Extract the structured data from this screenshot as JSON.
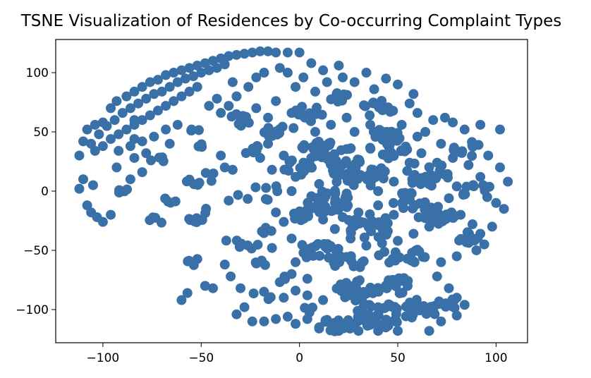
{
  "chart_data": {
    "type": "scatter",
    "title": "TSNE Visualization of Residences by Co-occurring Complaint Types",
    "xlabel": "",
    "ylabel": "",
    "xlim": [
      -124,
      116
    ],
    "ylim": [
      -128,
      128
    ],
    "xticks": [
      {
        "value": -100,
        "label": "−100"
      },
      {
        "value": -50,
        "label": "−50"
      },
      {
        "value": 0,
        "label": "0"
      },
      {
        "value": 50,
        "label": "50"
      },
      {
        "value": 100,
        "label": "100"
      }
    ],
    "yticks": [
      {
        "value": 100,
        "label": "100"
      },
      {
        "value": 50,
        "label": "50"
      },
      {
        "value": 0,
        "label": "0"
      },
      {
        "value": -50,
        "label": "−50"
      },
      {
        "value": -100,
        "label": "−100"
      }
    ],
    "marker_color": "#3a70a8",
    "clusters": [
      {
        "x": -48,
        "y": 10,
        "r": 10,
        "n": 8
      },
      {
        "x": -46,
        "y": -21,
        "r": 11,
        "n": 8
      },
      {
        "x": -20,
        "y": 0,
        "r": 12,
        "n": 8
      },
      {
        "x": -29,
        "y": -44,
        "r": 9,
        "n": 7
      },
      {
        "x": -14,
        "y": -33,
        "r": 6,
        "n": 5
      },
      {
        "x": -72,
        "y": 27,
        "r": 5,
        "n": 4
      },
      {
        "x": -67,
        "y": -8,
        "r": 5,
        "n": 4
      },
      {
        "x": -72,
        "y": -26,
        "r": 5,
        "n": 4
      },
      {
        "x": -90,
        "y": 0,
        "r": 4,
        "n": 4
      },
      {
        "x": -53,
        "y": -61,
        "r": 5,
        "n": 5
      },
      {
        "x": -53,
        "y": 54,
        "r": 4,
        "n": 3
      },
      {
        "x": -50,
        "y": 38,
        "r": 4,
        "n": 3
      },
      {
        "x": -19,
        "y": -60,
        "r": 4,
        "n": 4
      },
      {
        "x": -19,
        "y": -88,
        "r": 5,
        "n": 4
      },
      {
        "x": -10,
        "y": -75,
        "r": 4,
        "n": 3
      },
      {
        "x": 5,
        "y": -100,
        "r": 3,
        "n": 3
      },
      {
        "x": 40,
        "y": -105,
        "r": 12,
        "n": 40
      },
      {
        "x": 60,
        "y": -100,
        "r": 10,
        "n": 25
      },
      {
        "x": 75,
        "y": -95,
        "r": 6,
        "n": 10
      },
      {
        "x": 30,
        "y": -85,
        "r": 12,
        "n": 30
      },
      {
        "x": 50,
        "y": -80,
        "r": 8,
        "n": 15
      },
      {
        "x": 20,
        "y": -112,
        "r": 8,
        "n": 20
      },
      {
        "x": 35,
        "y": -30,
        "r": 12,
        "n": 30
      },
      {
        "x": 15,
        "y": -10,
        "r": 12,
        "n": 35
      },
      {
        "x": 30,
        "y": 15,
        "r": 14,
        "n": 35
      },
      {
        "x": 15,
        "y": 35,
        "r": 14,
        "n": 30
      },
      {
        "x": 45,
        "y": 40,
        "r": 14,
        "n": 30
      },
      {
        "x": 65,
        "y": 15,
        "r": 12,
        "n": 25
      },
      {
        "x": 70,
        "y": -20,
        "r": 10,
        "n": 20
      },
      {
        "x": 55,
        "y": -10,
        "r": 10,
        "n": 15
      },
      {
        "x": 10,
        "y": -50,
        "r": 10,
        "n": 20
      },
      {
        "x": 0,
        "y": 20,
        "r": 8,
        "n": 15
      },
      {
        "x": 5,
        "y": 65,
        "r": 8,
        "n": 15
      },
      {
        "x": 40,
        "y": 70,
        "r": 8,
        "n": 12
      },
      {
        "x": 85,
        "y": 35,
        "r": 8,
        "n": 10
      },
      {
        "x": 90,
        "y": 0,
        "r": 8,
        "n": 10
      },
      {
        "x": 85,
        "y": -40,
        "r": 7,
        "n": 10
      },
      {
        "x": 60,
        "y": -55,
        "r": 7,
        "n": 10
      },
      {
        "x": -10,
        "y": 50,
        "r": 8,
        "n": 15
      },
      {
        "x": -30,
        "y": 60,
        "r": 6,
        "n": 10
      },
      {
        "x": -25,
        "y": 35,
        "r": 5,
        "n": 6
      },
      {
        "x": 20,
        "y": 80,
        "r": 6,
        "n": 8
      },
      {
        "x": 25,
        "y": -60,
        "r": 8,
        "n": 15
      },
      {
        "x": 45,
        "y": -55,
        "r": 6,
        "n": 8
      },
      {
        "x": 0,
        "y": -20,
        "r": 6,
        "n": 10
      }
    ],
    "points": [
      [
        -112,
        30
      ],
      [
        -110,
        42
      ],
      [
        -108,
        52
      ],
      [
        -104,
        56
      ],
      [
        -100,
        58
      ],
      [
        -96,
        70
      ],
      [
        -93,
        76
      ],
      [
        -88,
        80
      ],
      [
        -84,
        84
      ],
      [
        -80,
        88
      ],
      [
        -76,
        92
      ],
      [
        -72,
        94
      ],
      [
        -68,
        98
      ],
      [
        -64,
        100
      ],
      [
        -60,
        102
      ],
      [
        -56,
        104
      ],
      [
        -52,
        106
      ],
      [
        -48,
        108
      ],
      [
        -44,
        110
      ],
      [
        -40,
        112
      ],
      [
        -36,
        114
      ],
      [
        -32,
        115
      ],
      [
        -28,
        116
      ],
      [
        -24,
        117
      ],
      [
        -20,
        118
      ],
      [
        -16,
        118
      ],
      [
        -12,
        117
      ],
      [
        -6,
        117
      ],
      [
        0,
        117
      ],
      [
        -106,
        40
      ],
      [
        -102,
        48
      ],
      [
        -98,
        55
      ],
      [
        -94,
        60
      ],
      [
        -90,
        66
      ],
      [
        -86,
        70
      ],
      [
        -82,
        74
      ],
      [
        -78,
        78
      ],
      [
        -74,
        82
      ],
      [
        -70,
        84
      ],
      [
        -66,
        88
      ],
      [
        -62,
        92
      ],
      [
        -58,
        95
      ],
      [
        -54,
        97
      ],
      [
        -50,
        100
      ],
      [
        -46,
        102
      ],
      [
        -42,
        104
      ],
      [
        -38,
        107
      ],
      [
        -104,
        34
      ],
      [
        -100,
        38
      ],
      [
        -96,
        44
      ],
      [
        -92,
        48
      ],
      [
        -88,
        52
      ],
      [
        -84,
        56
      ],
      [
        -80,
        60
      ],
      [
        -76,
        64
      ],
      [
        -72,
        68
      ],
      [
        -68,
        72
      ],
      [
        -64,
        76
      ],
      [
        -60,
        80
      ],
      [
        -56,
        84
      ],
      [
        -52,
        88
      ],
      [
        -92,
        34
      ],
      [
        -86,
        38
      ],
      [
        -80,
        42
      ],
      [
        -74,
        46
      ],
      [
        -68,
        52
      ],
      [
        -62,
        56
      ],
      [
        -84,
        28
      ],
      [
        -78,
        32
      ],
      [
        -66,
        40
      ],
      [
        -110,
        10
      ],
      [
        -112,
        2
      ],
      [
        -108,
        -12
      ],
      [
        -106,
        -18
      ],
      [
        -103,
        -22
      ],
      [
        -96,
        -20
      ],
      [
        -100,
        -26
      ],
      [
        -105,
        5
      ],
      [
        -93,
        20
      ],
      [
        -86,
        10
      ],
      [
        -80,
        16
      ],
      [
        -84,
        44
      ],
      [
        -84,
        60
      ],
      [
        -46,
        72
      ],
      [
        -42,
        78
      ],
      [
        -40,
        66
      ],
      [
        -36,
        72
      ],
      [
        -32,
        80
      ],
      [
        -34,
        92
      ],
      [
        -26,
        88
      ],
      [
        -22,
        96
      ],
      [
        -18,
        100
      ],
      [
        -10,
        104
      ],
      [
        -6,
        100
      ],
      [
        2,
        96
      ],
      [
        6,
        108
      ],
      [
        12,
        102
      ],
      [
        20,
        106
      ],
      [
        -2,
        88
      ],
      [
        8,
        84
      ],
      [
        14,
        92
      ],
      [
        -60,
        -92
      ],
      [
        -57,
        -86
      ],
      [
        -48,
        -80
      ],
      [
        -44,
        -82
      ],
      [
        -38,
        -62
      ],
      [
        -35,
        -72
      ],
      [
        -30,
        -82
      ],
      [
        -28,
        -98
      ],
      [
        -32,
        -104
      ],
      [
        -24,
        -110
      ],
      [
        -18,
        -110
      ],
      [
        -12,
        -108
      ],
      [
        -6,
        -106
      ],
      [
        -2,
        -112
      ],
      [
        4,
        -108
      ],
      [
        10,
        -115
      ],
      [
        14,
        -110
      ],
      [
        -8,
        -90
      ],
      [
        -2,
        -84
      ],
      [
        4,
        -88
      ],
      [
        12,
        -92
      ],
      [
        -4,
        -70
      ],
      [
        4,
        -74
      ],
      [
        -2,
        -60
      ],
      [
        -12,
        -18
      ],
      [
        -8,
        -26
      ],
      [
        -14,
        -48
      ],
      [
        -4,
        -40
      ],
      [
        -38,
        20
      ],
      [
        -34,
        18
      ],
      [
        -40,
        30
      ],
      [
        -36,
        -8
      ],
      [
        -2,
        12
      ],
      [
        -4,
        0
      ],
      [
        58,
        82
      ],
      [
        60,
        66
      ],
      [
        68,
        60
      ],
      [
        74,
        62
      ],
      [
        78,
        58
      ],
      [
        84,
        52
      ],
      [
        92,
        56
      ],
      [
        102,
        52
      ],
      [
        96,
        30
      ],
      [
        102,
        20
      ],
      [
        106,
        8
      ],
      [
        100,
        -10
      ],
      [
        104,
        -15
      ],
      [
        98,
        -30
      ],
      [
        94,
        -45
      ],
      [
        90,
        -50
      ],
      [
        80,
        -55
      ],
      [
        72,
        -60
      ],
      [
        70,
        -72
      ],
      [
        76,
        -82
      ],
      [
        80,
        -90
      ],
      [
        84,
        -96
      ],
      [
        80,
        -105
      ],
      [
        72,
        -110
      ],
      [
        66,
        -118
      ],
      [
        50,
        -118
      ],
      [
        40,
        -118
      ],
      [
        30,
        -118
      ],
      [
        20,
        -118
      ],
      [
        10,
        -116
      ],
      [
        34,
        100
      ],
      [
        44,
        95
      ],
      [
        50,
        90
      ],
      [
        22,
        96
      ],
      [
        28,
        92
      ],
      [
        38,
        86
      ],
      [
        56,
        74
      ],
      [
        64,
        50
      ],
      [
        72,
        40
      ],
      [
        78,
        28
      ],
      [
        86,
        22
      ],
      [
        92,
        12
      ],
      [
        80,
        4
      ],
      [
        76,
        -6
      ],
      [
        82,
        -20
      ],
      [
        88,
        -28
      ],
      [
        92,
        -36
      ],
      [
        66,
        -30
      ],
      [
        58,
        -36
      ],
      [
        50,
        -42
      ],
      [
        42,
        -44
      ],
      [
        34,
        -46
      ],
      [
        26,
        -40
      ],
      [
        18,
        -32
      ],
      [
        12,
        -24
      ],
      [
        6,
        -14
      ],
      [
        28,
        50
      ],
      [
        36,
        56
      ],
      [
        52,
        56
      ],
      [
        60,
        46
      ],
      [
        8,
        50
      ],
      [
        16,
        56
      ],
      [
        24,
        62
      ],
      [
        -16,
        62
      ],
      [
        -22,
        70
      ],
      [
        -12,
        76
      ],
      [
        -4,
        66
      ],
      [
        2,
        36
      ],
      [
        6,
        28
      ],
      [
        10,
        6
      ],
      [
        24,
        -2
      ],
      [
        40,
        0
      ],
      [
        48,
        8
      ],
      [
        56,
        24
      ],
      [
        62,
        32
      ],
      [
        70,
        24
      ],
      [
        48,
        -20
      ],
      [
        40,
        -12
      ],
      [
        30,
        -18
      ],
      [
        22,
        -22
      ],
      [
        -8,
        30
      ],
      [
        -16,
        40
      ],
      [
        -20,
        28
      ],
      [
        -14,
        18
      ]
    ]
  }
}
